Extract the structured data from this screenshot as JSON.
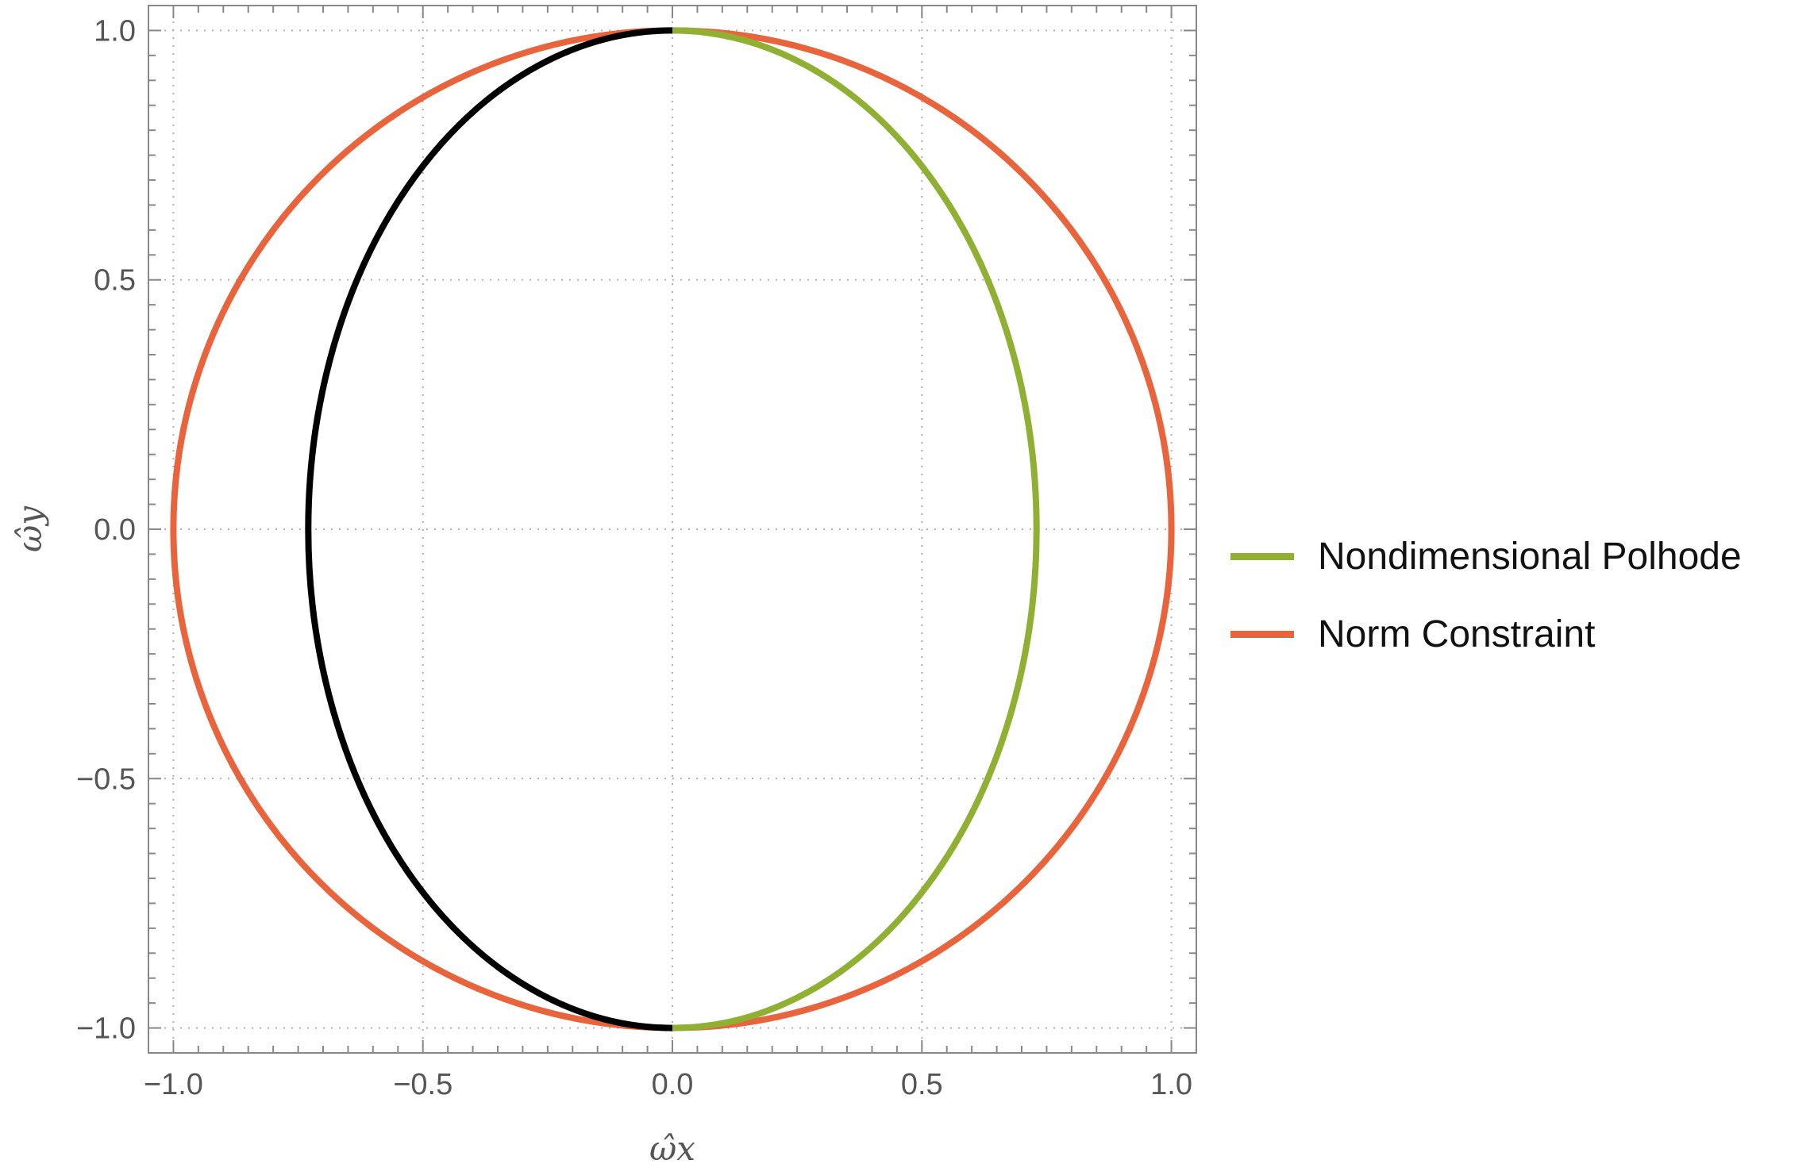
{
  "chart_data": {
    "type": "line",
    "title": "",
    "xlabel": "ω̂x",
    "ylabel": "ω̂y",
    "xlim": [
      -1.05,
      1.05
    ],
    "ylim": [
      -1.05,
      1.05
    ],
    "x_ticks": [
      "−1.0",
      "−0.5",
      "0.0",
      "0.5",
      "1.0"
    ],
    "y_ticks": [
      "−1.0",
      "−0.5",
      "0.0",
      "0.5",
      "1.0"
    ],
    "grid": true,
    "legend_position": "right",
    "series": [
      {
        "name": "Nondimensional Polhode",
        "color": "#8fb032",
        "shape": "right half of ellipse",
        "center": [
          0,
          0
        ],
        "semi_axis_x": 0.73,
        "semi_axis_y": 1.0
      },
      {
        "name": "Norm Constraint",
        "color": "#e8643c",
        "shape": "unit circle",
        "center": [
          0,
          0
        ],
        "radius": 1.0
      },
      {
        "color": "#000000",
        "shape": "left half of ellipse",
        "center": [
          0,
          0
        ],
        "semi_axis_x": 0.73,
        "semi_axis_y": 1.0
      }
    ]
  }
}
